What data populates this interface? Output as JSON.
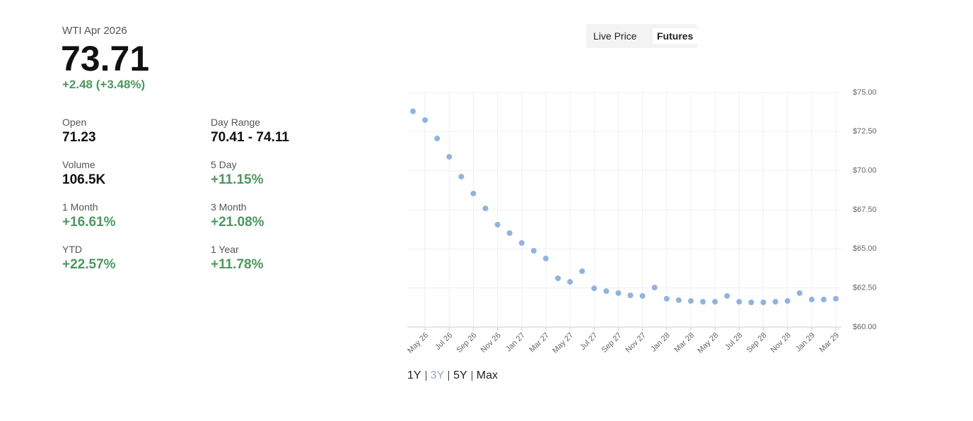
{
  "header": {
    "title": "WTI Apr 2026",
    "price": "73.71",
    "change": "+2.48 (+3.48%)"
  },
  "stats": [
    {
      "label": "Open",
      "value": "71.23"
    },
    {
      "label": "Day Range",
      "value": "70.41 - 74.11"
    },
    {
      "label": "Volume",
      "value": "106.5K"
    },
    {
      "label": "5 Day",
      "value": "+11.15%"
    },
    {
      "label": "1 Month",
      "value": "+16.61%"
    },
    {
      "label": "3 Month",
      "value": "+21.08%"
    },
    {
      "label": "YTD",
      "value": "+22.57%"
    },
    {
      "label": "1 Year",
      "value": "+11.78%"
    }
  ],
  "tabs": [
    "Live Price",
    "Futures"
  ],
  "ranges": [
    "1Y",
    "3Y",
    "5Y",
    "Max"
  ],
  "chart_data": {
    "type": "scatter",
    "color": "#8fb4e0",
    "grid": true,
    "categories": [
      null,
      "May 26",
      null,
      "Jul 26",
      null,
      "Sep 26",
      null,
      "Nov 26",
      null,
      "Jan 27",
      null,
      "Mar 27",
      null,
      "May 27",
      null,
      "Jul 27",
      null,
      "Sep 27",
      null,
      "Nov 27",
      null,
      "Jan 28",
      null,
      "Mar 28",
      null,
      "May 28",
      null,
      "Jul 28",
      null,
      "Sep 28",
      null,
      "Nov 28",
      null,
      "Jan 29",
      null,
      "Mar 29"
    ],
    "values": [
      73.8,
      73.24,
      72.06,
      70.89,
      69.62,
      68.54,
      67.59,
      66.55,
      66.01,
      65.38,
      64.88,
      64.38,
      63.12,
      62.89,
      63.57,
      62.48,
      62.3,
      62.17,
      62.03,
      61.99,
      62.53,
      61.81,
      61.72,
      61.67,
      61.62,
      61.62,
      61.99,
      61.62,
      61.58,
      61.58,
      61.62,
      61.67,
      62.17,
      61.76,
      61.76,
      61.81
    ],
    "ylim": [
      60,
      75
    ],
    "yticks": [
      {
        "value": 60,
        "label": "$60.00"
      },
      {
        "value": 62.5,
        "label": "$62.50"
      },
      {
        "value": 65,
        "label": "$65.00"
      },
      {
        "value": 67.5,
        "label": "$67.50"
      },
      {
        "value": 70,
        "label": "$70.00"
      },
      {
        "value": 72.5,
        "label": "$72.50"
      },
      {
        "value": 75,
        "label": "$75.00"
      }
    ]
  }
}
